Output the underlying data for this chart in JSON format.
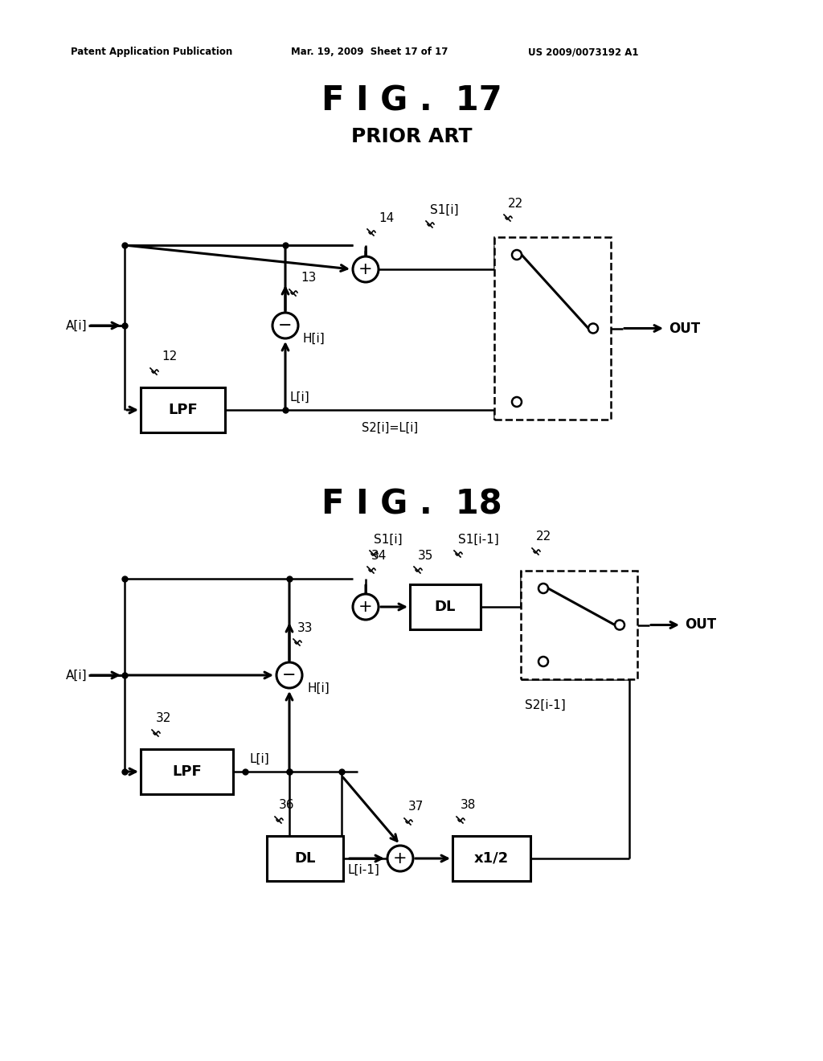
{
  "bg_color": "#ffffff",
  "header_left": "Patent Application Publication",
  "header_mid": "Mar. 19, 2009  Sheet 17 of 17",
  "header_right": "US 2009/0073192 A1",
  "fig17_title": "F I G .  17",
  "fig17_sub": "PRIOR ART",
  "fig18_title": "F I G .  18",
  "lw": 1.8,
  "lwt": 2.2,
  "rc": 16
}
